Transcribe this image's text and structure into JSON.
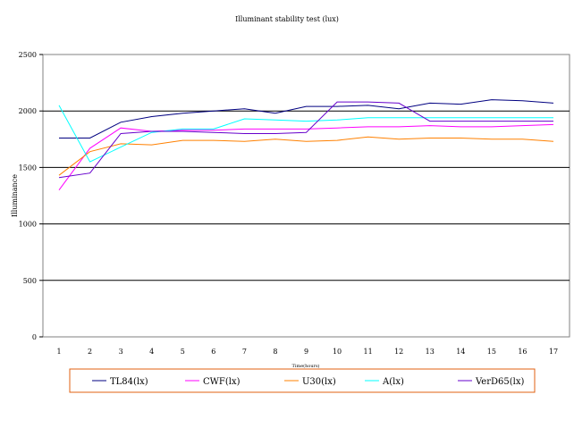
{
  "chart_data": {
    "type": "line",
    "title": "Illuminant stability test (lux)",
    "xlabel": "Time(hours)",
    "ylabel": "Illuminance",
    "ylim": [
      0,
      2500
    ],
    "yticks": [
      0,
      500,
      1000,
      1500,
      2000,
      2500
    ],
    "x": [
      1,
      2,
      3,
      4,
      5,
      6,
      7,
      8,
      9,
      10,
      11,
      12,
      13,
      14,
      15,
      16,
      17
    ],
    "grid": "horizontal",
    "legend_position": "bottom",
    "series": [
      {
        "name": "TL84(lx)",
        "color": "#000080",
        "values": [
          1760,
          1760,
          1900,
          1950,
          1980,
          2000,
          2020,
          1980,
          2040,
          2040,
          2050,
          2020,
          2070,
          2060,
          2100,
          2090,
          2070
        ]
      },
      {
        "name": "CWF(lx)",
        "color": "#ff00ff",
        "values": [
          1300,
          1670,
          1850,
          1820,
          1830,
          1830,
          1840,
          1840,
          1840,
          1850,
          1860,
          1860,
          1870,
          1860,
          1860,
          1870,
          1880
        ]
      },
      {
        "name": "U30(lx)",
        "color": "#ff8000",
        "values": [
          1430,
          1640,
          1710,
          1700,
          1740,
          1740,
          1730,
          1750,
          1730,
          1740,
          1770,
          1750,
          1760,
          1760,
          1750,
          1750,
          1730
        ]
      },
      {
        "name": "A(lx)",
        "color": "#00ffff",
        "values": [
          2050,
          1550,
          1680,
          1810,
          1840,
          1840,
          1930,
          1920,
          1910,
          1920,
          1940,
          1940,
          1940,
          1940,
          1940,
          1940,
          1940
        ]
      },
      {
        "name": "VerD65(lx)",
        "color": "#6600cc",
        "values": [
          1410,
          1450,
          1800,
          1820,
          1820,
          1810,
          1800,
          1800,
          1810,
          2080,
          2080,
          2070,
          1910,
          1910,
          1910,
          1910,
          1910
        ]
      }
    ]
  }
}
